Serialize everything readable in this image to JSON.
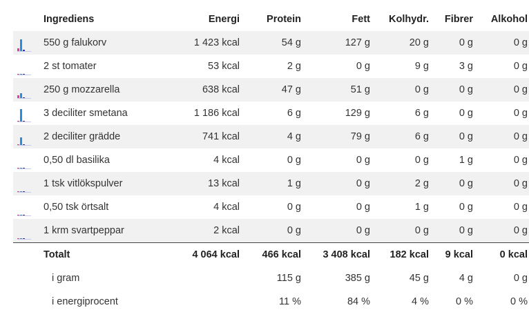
{
  "headers": [
    "Ingrediens",
    "Energi",
    "Protein",
    "Fett",
    "Kolhydr.",
    "Fibrer",
    "Alkohol"
  ],
  "colors": {
    "protein": "#e040a0",
    "fat": "#2a8be0",
    "carb": "#3030d0"
  },
  "rows": [
    {
      "name": "550 g falukorv",
      "energi": "1 423 kcal",
      "protein": "54 g",
      "fett": "127 g",
      "kolhydr": "20 g",
      "fibrer": "0 g",
      "alkohol": "0 g",
      "bars": [
        0.2,
        0.95,
        0.12
      ]
    },
    {
      "name": "2 st tomater",
      "energi": "53 kcal",
      "protein": "2 g",
      "fett": "0 g",
      "kolhydr": "9 g",
      "fibrer": "3 g",
      "alkohol": "0 g",
      "bars": [
        0.02,
        0.0,
        0.05
      ]
    },
    {
      "name": "250 g mozzarella",
      "energi": "638 kcal",
      "protein": "47 g",
      "fett": "51 g",
      "kolhydr": "0 g",
      "fibrer": "0 g",
      "alkohol": "0 g",
      "bars": [
        0.22,
        0.38,
        0.0
      ]
    },
    {
      "name": "3 deciliter smetana",
      "energi": "1 186 kcal",
      "protein": "6 g",
      "fett": "129 g",
      "kolhydr": "6 g",
      "fibrer": "0 g",
      "alkohol": "0 g",
      "bars": [
        0.03,
        0.98,
        0.03
      ]
    },
    {
      "name": "2 deciliter grädde",
      "energi": "741 kcal",
      "protein": "4 g",
      "fett": "79 g",
      "kolhydr": "6 g",
      "fibrer": "0 g",
      "alkohol": "0 g",
      "bars": [
        0.02,
        0.6,
        0.03
      ]
    },
    {
      "name": "0,50 dl basilika",
      "energi": "4 kcal",
      "protein": "0 g",
      "fett": "0 g",
      "kolhydr": "0 g",
      "fibrer": "1 g",
      "alkohol": "0 g",
      "bars": [
        0.0,
        0.0,
        0.0
      ]
    },
    {
      "name": "1 tsk vitlökspulver",
      "energi": "13 kcal",
      "protein": "1 g",
      "fett": "0 g",
      "kolhydr": "2 g",
      "fibrer": "0 g",
      "alkohol": "0 g",
      "bars": [
        0.0,
        0.0,
        0.01
      ]
    },
    {
      "name": "0,50 tsk örtsalt",
      "energi": "4 kcal",
      "protein": "0 g",
      "fett": "0 g",
      "kolhydr": "1 g",
      "fibrer": "0 g",
      "alkohol": "0 g",
      "bars": [
        0.0,
        0.0,
        0.0
      ]
    },
    {
      "name": "1 krm svartpeppar",
      "energi": "2 kcal",
      "protein": "0 g",
      "fett": "0 g",
      "kolhydr": "0 g",
      "fibrer": "0 g",
      "alkohol": "0 g",
      "bars": [
        0.0,
        0.0,
        0.0
      ]
    }
  ],
  "totals": {
    "label": "Totalt",
    "energi": "4 064 kcal",
    "protein": "466 kcal",
    "fett": "3 408 kcal",
    "kolhydr": "182 kcal",
    "fibrer": "9 kcal",
    "alkohol": "0 kcal"
  },
  "grams": {
    "label": "i gram",
    "protein": "115 g",
    "fett": "385 g",
    "kolhydr": "45 g",
    "fibrer": "4 g",
    "alkohol": "0 g"
  },
  "percent": {
    "label": "i energiprocent",
    "protein": "11 %",
    "fett": "84 %",
    "kolhydr": "4 %",
    "fibrer": "0 %",
    "alkohol": "0 %"
  }
}
